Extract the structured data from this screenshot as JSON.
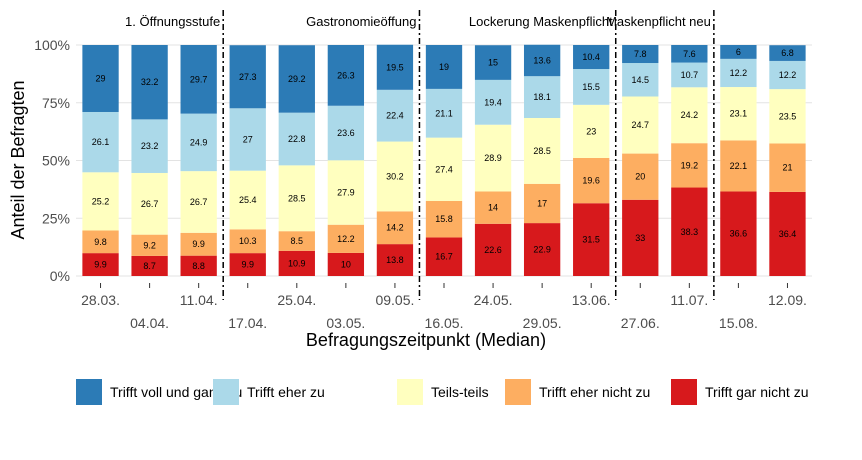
{
  "chart_data": {
    "type": "bar",
    "stacked": true,
    "xlabel": "Befragungszeitpunkt (Median)",
    "ylabel": "Anteil der Befragten",
    "ylim": [
      0,
      100
    ],
    "yticks": [
      "0%",
      "25%",
      "50%",
      "75%",
      "100%"
    ],
    "grid": true,
    "legend_position": "bottom",
    "categories": [
      "28.03.",
      "04.04.",
      "11.04.",
      "17.04.",
      "25.04.",
      "03.05.",
      "09.05.",
      "16.05.",
      "24.05.",
      "29.05.",
      "13.06.",
      "27.06.",
      "11.07.",
      "15.08.",
      "12.09."
    ],
    "series": [
      {
        "name": "Trifft gar nicht zu",
        "color": "#d7191c",
        "values": [
          9.9,
          8.7,
          8.8,
          9.9,
          10.9,
          10,
          13.8,
          16.7,
          22.6,
          22.9,
          31.5,
          33,
          38.3,
          36.6,
          36.4
        ]
      },
      {
        "name": "Trifft eher nicht zu",
        "color": "#fdae61",
        "values": [
          9.8,
          9.2,
          9.9,
          10.3,
          8.5,
          12.2,
          14.2,
          15.8,
          14,
          17,
          19.6,
          20,
          19.2,
          22.1,
          21
        ]
      },
      {
        "name": "Teils-teils",
        "color": "#ffffbf",
        "values": [
          25.2,
          26.7,
          26.7,
          25.4,
          28.5,
          27.9,
          30.2,
          27.4,
          28.9,
          28.5,
          23,
          24.7,
          24.2,
          23.1,
          23.5
        ]
      },
      {
        "name": "Trifft eher zu",
        "color": "#abd9e9",
        "values": [
          26.1,
          23.2,
          24.9,
          27,
          22.8,
          23.6,
          22.4,
          21.1,
          19.4,
          18.1,
          15.5,
          14.5,
          10.7,
          12.2,
          12.2
        ]
      },
      {
        "name": "Trifft voll und ganz zu",
        "color": "#2c7bb6",
        "values": [
          29,
          32.2,
          29.7,
          27.3,
          29.2,
          26.3,
          19.5,
          19,
          15,
          13.6,
          10.4,
          7.8,
          7.6,
          6,
          6.8
        ]
      }
    ],
    "legend_order": [
      "Trifft voll und ganz zu",
      "Trifft eher zu",
      "Teils-teils",
      "Trifft eher nicht zu",
      "Trifft gar nicht zu"
    ],
    "events": [
      {
        "label": "1. Öffnungsstufe",
        "after_category": "11.04."
      },
      {
        "label": "Gastronomieöffung",
        "after_category": "09.05."
      },
      {
        "label": "Lockerung Maskenpflicht",
        "after_category": "13.06."
      },
      {
        "label": "Maskenpflicht neu",
        "after_category": "11.07."
      }
    ]
  }
}
